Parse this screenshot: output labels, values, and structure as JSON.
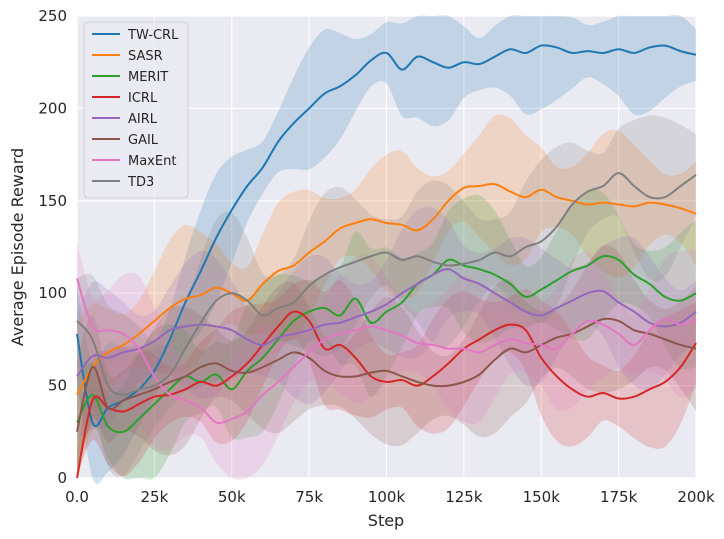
{
  "chart_data": {
    "type": "line",
    "title": "",
    "xlabel": "Step",
    "ylabel": "Average Episode Reward",
    "xlim": [
      0,
      200000
    ],
    "ylim": [
      0,
      250
    ],
    "grid": true,
    "legend_position": "top-left",
    "x_ticks": [
      0,
      25000,
      50000,
      75000,
      100000,
      125000,
      150000,
      175000,
      200000
    ],
    "x_tick_labels": [
      "0.0",
      "25k",
      "50k",
      "75k",
      "100k",
      "125k",
      "150k",
      "175k",
      "200k"
    ],
    "y_ticks": [
      0,
      50,
      100,
      150,
      200,
      250
    ],
    "y_tick_labels": [
      "0",
      "50",
      "100",
      "150",
      "200",
      "250"
    ],
    "x": [
      0,
      5000,
      10000,
      15000,
      20000,
      25000,
      30000,
      35000,
      40000,
      45000,
      50000,
      55000,
      60000,
      65000,
      70000,
      75000,
      80000,
      85000,
      90000,
      95000,
      100000,
      105000,
      110000,
      115000,
      120000,
      125000,
      130000,
      135000,
      140000,
      145000,
      150000,
      155000,
      160000,
      165000,
      170000,
      175000,
      180000,
      185000,
      190000,
      195000,
      200000
    ],
    "series": [
      {
        "name": "TW-CRL",
        "color": "#1f77b4",
        "band": 35,
        "values": [
          78,
          30,
          38,
          42,
          48,
          58,
          75,
          95,
          112,
          130,
          145,
          158,
          168,
          182,
          192,
          200,
          208,
          212,
          218,
          226,
          230,
          221,
          228,
          225,
          222,
          225,
          224,
          228,
          232,
          230,
          234,
          233,
          230,
          231,
          230,
          232,
          230,
          233,
          234,
          231,
          229
        ]
      },
      {
        "name": "SASR",
        "color": "#ff7f0e",
        "band": 40,
        "values": [
          45,
          60,
          68,
          72,
          78,
          85,
          92,
          97,
          99,
          103,
          100,
          96,
          105,
          112,
          115,
          122,
          128,
          135,
          138,
          140,
          138,
          137,
          134,
          140,
          150,
          157,
          158,
          159,
          155,
          152,
          156,
          152,
          150,
          148,
          149,
          148,
          147,
          149,
          148,
          146,
          143
        ]
      },
      {
        "name": "MERIT",
        "color": "#2ca02c",
        "band": 40,
        "values": [
          30,
          45,
          28,
          25,
          32,
          40,
          48,
          55,
          52,
          56,
          48,
          58,
          65,
          75,
          85,
          90,
          92,
          88,
          97,
          84,
          90,
          95,
          105,
          110,
          118,
          115,
          113,
          110,
          105,
          98,
          102,
          107,
          112,
          115,
          120,
          118,
          110,
          105,
          98,
          96,
          100
        ]
      },
      {
        "name": "ICRL",
        "color": "#d62728",
        "band": 35,
        "values": [
          0,
          42,
          38,
          36,
          40,
          44,
          45,
          48,
          52,
          50,
          55,
          62,
          72,
          82,
          90,
          85,
          70,
          72,
          65,
          55,
          52,
          53,
          50,
          55,
          62,
          70,
          75,
          80,
          83,
          80,
          65,
          55,
          48,
          44,
          46,
          43,
          44,
          48,
          52,
          60,
          73
        ]
      },
      {
        "name": "AIRL",
        "color": "#9467bd",
        "band": 40,
        "values": [
          55,
          66,
          65,
          68,
          70,
          74,
          80,
          82,
          83,
          82,
          80,
          75,
          72,
          76,
          78,
          80,
          83,
          84,
          87,
          90,
          94,
          100,
          105,
          110,
          113,
          108,
          105,
          100,
          95,
          90,
          88,
          92,
          96,
          100,
          101,
          95,
          90,
          84,
          82,
          84,
          90
        ]
      },
      {
        "name": "GAIL",
        "color": "#8c564b",
        "band": 40,
        "values": [
          25,
          60,
          38,
          42,
          45,
          48,
          52,
          55,
          60,
          62,
          58,
          57,
          60,
          64,
          68,
          65,
          58,
          55,
          55,
          57,
          58,
          55,
          52,
          50,
          50,
          52,
          56,
          64,
          70,
          68,
          72,
          76,
          78,
          82,
          86,
          85,
          80,
          78,
          75,
          72,
          70
        ]
      },
      {
        "name": "MaxEnt",
        "color": "#e377c2",
        "band": 40,
        "values": [
          108,
          82,
          80,
          78,
          70,
          55,
          45,
          42,
          38,
          30,
          32,
          36,
          45,
          52,
          60,
          68,
          75,
          78,
          80,
          82,
          80,
          77,
          73,
          72,
          70,
          70,
          68,
          72,
          75,
          73,
          72,
          70,
          78,
          85,
          83,
          78,
          72,
          80,
          86,
          83,
          86
        ]
      },
      {
        "name": "TD3",
        "color": "#7f7f7f",
        "band": 45,
        "values": [
          85,
          75,
          50,
          45,
          48,
          50,
          56,
          70,
          84,
          96,
          100,
          96,
          88,
          92,
          95,
          104,
          110,
          114,
          117,
          120,
          122,
          118,
          120,
          117,
          115,
          116,
          118,
          122,
          120,
          125,
          128,
          136,
          148,
          155,
          158,
          165,
          158,
          152,
          152,
          158,
          164
        ]
      }
    ]
  }
}
